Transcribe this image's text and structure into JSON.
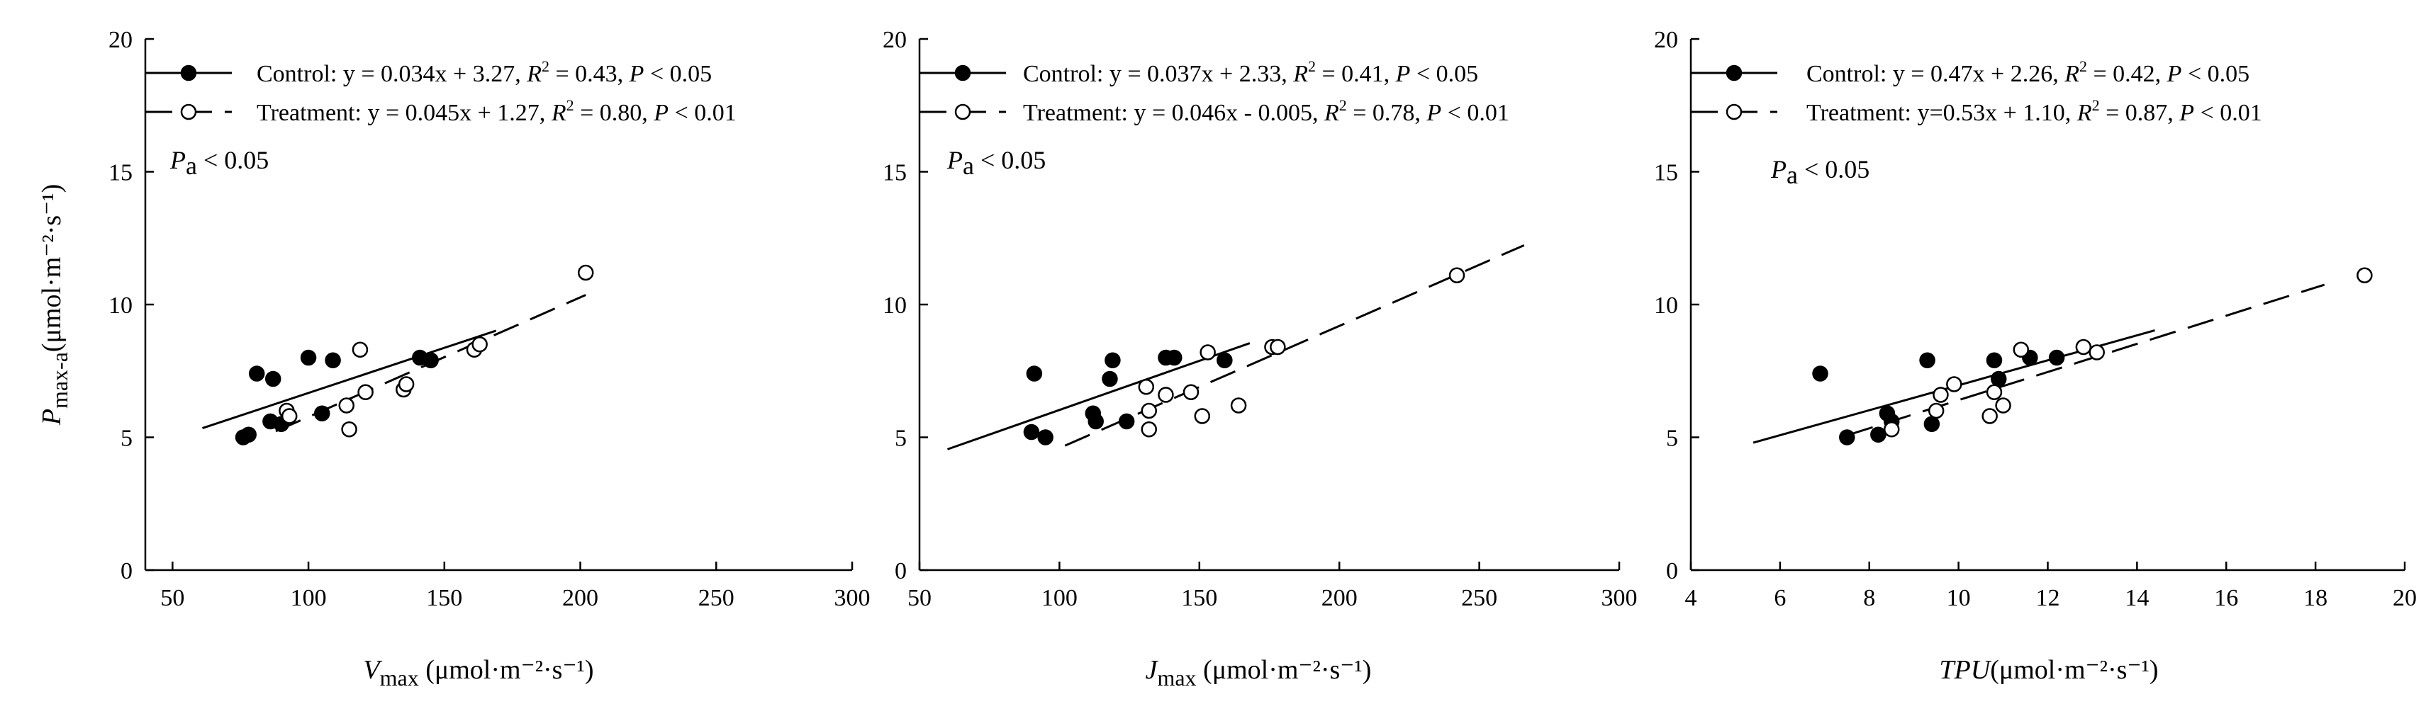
{
  "chart_data": [
    {
      "type": "scatter",
      "x_var": "V",
      "x_sub": "max",
      "x_unit": "(μmol·m⁻²·s⁻¹)",
      "y_var": "P",
      "y_sub": "max-a",
      "y_unit": "(μmol·m⁻²·s⁻¹)",
      "xlim": [
        40,
        300
      ],
      "ylim": [
        0,
        20
      ],
      "xticks": [
        50,
        100,
        150,
        200,
        250,
        300
      ],
      "yticks": [
        0,
        5,
        10,
        15,
        20
      ],
      "annotation": {
        "var": "P",
        "sub": "a",
        "rest": " < 0.05"
      },
      "series": [
        {
          "name": "Control",
          "marker": "filled",
          "legend": {
            "label": "Control: ",
            "equation": "y = 0.034x + 3.27, ",
            "r2": "R² = 0.43, ",
            "p": "P < 0.05"
          },
          "line_style": "solid",
          "fit": {
            "slope": 0.034,
            "intercept": 3.27,
            "x_range": [
              61,
              169
            ]
          },
          "points": [
            [
              76,
              5.0
            ],
            [
              78,
              5.1
            ],
            [
              81,
              7.4
            ],
            [
              86,
              5.6
            ],
            [
              87,
              7.2
            ],
            [
              90,
              5.5
            ],
            [
              100,
              8.0
            ],
            [
              105,
              5.9
            ],
            [
              109,
              7.9
            ],
            [
              141,
              8.0
            ],
            [
              145,
              7.9
            ]
          ]
        },
        {
          "name": "Treatment",
          "marker": "open",
          "legend": {
            "label": "Treatment: ",
            "equation": "y = 0.045x + 1.27, ",
            "r2": "R² = 0.80, ",
            "p": "P < 0.01"
          },
          "line_style": "dashed",
          "fit": {
            "slope": 0.045,
            "intercept": 1.27,
            "x_range": [
              88,
              202
            ]
          },
          "points": [
            [
              92,
              6.0
            ],
            [
              93,
              5.8
            ],
            [
              114,
              6.2
            ],
            [
              115,
              5.3
            ],
            [
              119,
              8.3
            ],
            [
              121,
              6.7
            ],
            [
              135,
              6.8
            ],
            [
              136,
              7.0
            ],
            [
              161,
              8.3
            ],
            [
              163,
              8.5
            ],
            [
              202,
              11.2
            ]
          ]
        }
      ]
    },
    {
      "type": "scatter",
      "x_var": "J",
      "x_sub": "max",
      "x_unit": "(μmol·m⁻²·s⁻¹)",
      "y_var": "",
      "y_sub": "",
      "y_unit": "",
      "xlim": [
        50,
        300
      ],
      "ylim": [
        0,
        20
      ],
      "xticks": [
        50,
        100,
        150,
        200,
        250,
        300
      ],
      "yticks": [
        0,
        5,
        10,
        15,
        20
      ],
      "annotation": {
        "var": "P",
        "sub": "a",
        "rest": " < 0.05"
      },
      "series": [
        {
          "name": "Control",
          "marker": "filled",
          "legend": {
            "label": "Control: ",
            "equation": "y = 0.037x + 2.33, ",
            "r2": "R² = 0.41, ",
            "p": "P < 0.05"
          },
          "line_style": "solid",
          "fit": {
            "slope": 0.037,
            "intercept": 2.33,
            "x_range": [
              60,
              168
            ]
          },
          "points": [
            [
              90,
              5.2
            ],
            [
              91,
              7.4
            ],
            [
              95,
              5.0
            ],
            [
              112,
              5.9
            ],
            [
              113,
              5.6
            ],
            [
              118,
              7.2
            ],
            [
              119,
              7.9
            ],
            [
              124,
              5.6
            ],
            [
              138,
              8.0
            ],
            [
              141,
              8.0
            ],
            [
              159,
              7.9
            ]
          ]
        },
        {
          "name": "Treatment",
          "marker": "open",
          "legend": {
            "label": "Treatment: ",
            "equation": "y = 0.046x - 0.005, ",
            "r2": "R² = 0.78, ",
            "p": "P < 0.01"
          },
          "line_style": "dashed",
          "fit": {
            "slope": 0.046,
            "intercept": -0.005,
            "x_range": [
              102,
              266
            ]
          },
          "points": [
            [
              131,
              6.9
            ],
            [
              132,
              6.0
            ],
            [
              132,
              5.3
            ],
            [
              138,
              6.6
            ],
            [
              147,
              6.7
            ],
            [
              151,
              5.8
            ],
            [
              153,
              8.2
            ],
            [
              164,
              6.2
            ],
            [
              176,
              8.4
            ],
            [
              178,
              8.4
            ],
            [
              242,
              11.1
            ]
          ]
        }
      ]
    },
    {
      "type": "scatter",
      "x_var": "TPU",
      "x_sub": "",
      "x_unit": "(μmol·m⁻²·s⁻¹)",
      "y_var": "",
      "y_sub": "",
      "y_unit": "",
      "xlim": [
        4,
        20
      ],
      "ylim": [
        0,
        20
      ],
      "xticks": [
        4,
        6,
        8,
        10,
        12,
        14,
        16,
        18,
        20
      ],
      "yticks": [
        0,
        5,
        10,
        15,
        20
      ],
      "annotation": {
        "var": "P",
        "sub": "a",
        "rest": " < 0.05"
      },
      "series": [
        {
          "name": "Control",
          "marker": "filled",
          "legend": {
            "label": "Control: ",
            "equation": "y = 0.47x + 2.26, ",
            "r2": "R² = 0.42, ",
            "p": "P < 0.05"
          },
          "line_style": "solid",
          "fit": {
            "slope": 0.47,
            "intercept": 2.26,
            "x_range": [
              5.4,
              14.4
            ]
          },
          "points": [
            [
              6.9,
              7.4
            ],
            [
              7.5,
              5.0
            ],
            [
              8.2,
              5.1
            ],
            [
              8.4,
              5.9
            ],
            [
              8.5,
              5.6
            ],
            [
              9.3,
              7.9
            ],
            [
              9.4,
              5.5
            ],
            [
              10.8,
              7.9
            ],
            [
              10.9,
              7.2
            ],
            [
              11.6,
              8.0
            ],
            [
              12.2,
              8.0
            ]
          ]
        },
        {
          "name": "Treatment",
          "marker": "open",
          "legend": {
            "label": "Treatment: ",
            "equation": "y=0.53x + 1.10, ",
            "r2": "R² = 0.87, ",
            "p": "P < 0.01"
          },
          "line_style": "dashed",
          "fit": {
            "slope": 0.53,
            "intercept": 1.1,
            "x_range": [
              7.5,
              18.2
            ]
          },
          "points": [
            [
              8.5,
              5.3
            ],
            [
              9.5,
              6.0
            ],
            [
              9.6,
              6.6
            ],
            [
              9.9,
              7.0
            ],
            [
              10.7,
              5.8
            ],
            [
              10.8,
              6.7
            ],
            [
              11.0,
              6.2
            ],
            [
              11.4,
              8.3
            ],
            [
              12.8,
              8.4
            ],
            [
              13.1,
              8.2
            ],
            [
              19.1,
              11.1
            ]
          ]
        }
      ]
    }
  ]
}
